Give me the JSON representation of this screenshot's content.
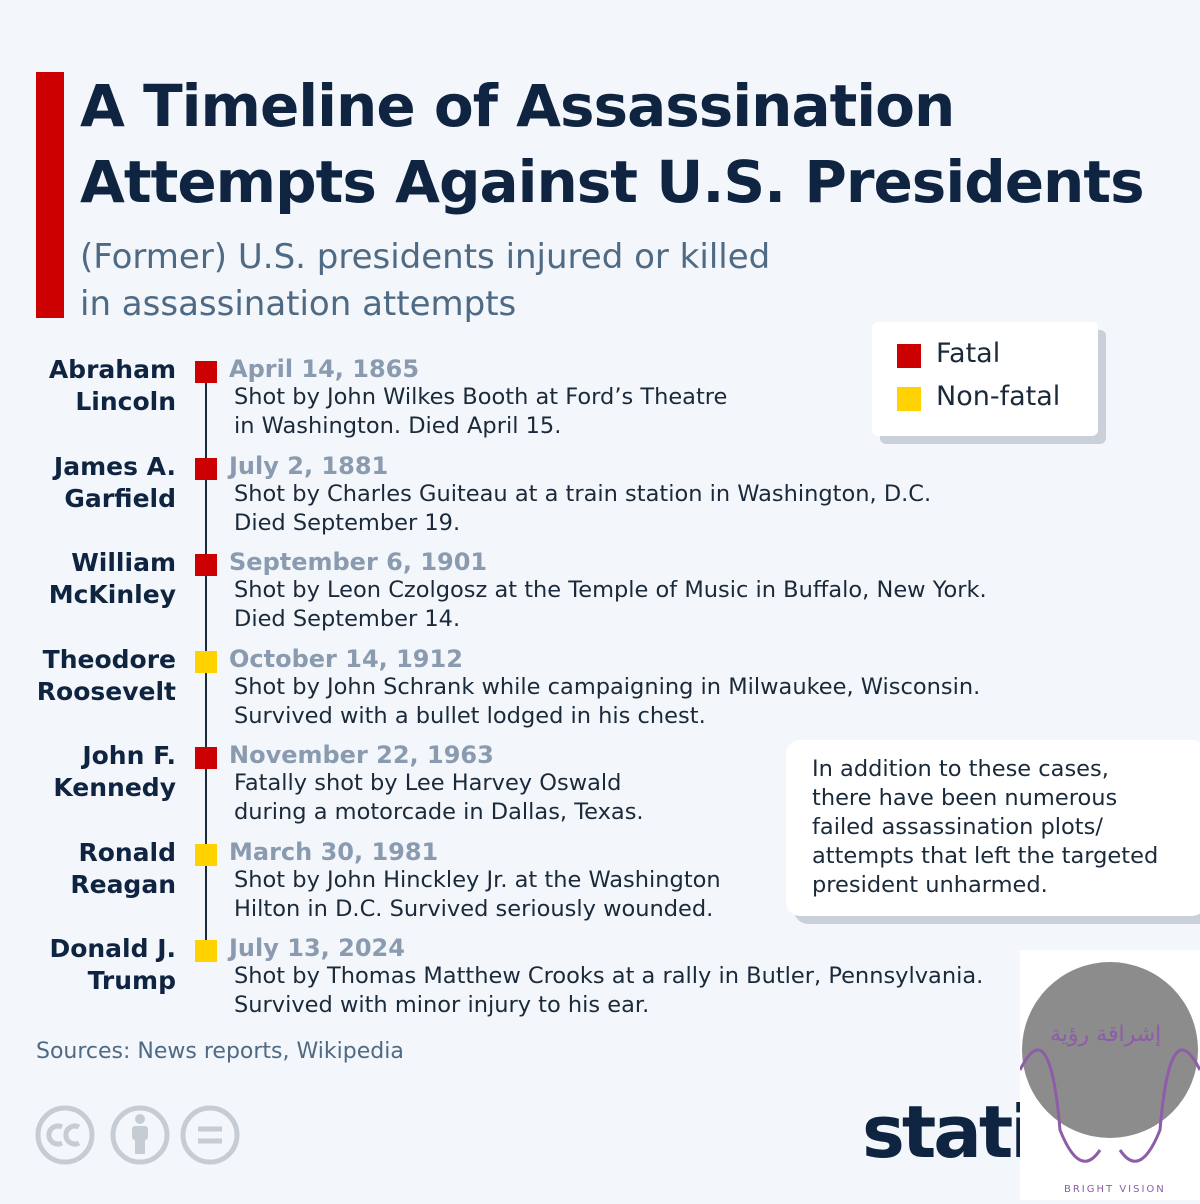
{
  "header": {
    "title_lines": [
      "A Timeline of Assassination",
      "Attempts Against U.S. Presidents"
    ],
    "subtitle_lines": [
      "(Former) U.S. presidents injured or killed",
      "in assassination attempts"
    ]
  },
  "legend": [
    {
      "label": "Fatal",
      "color": "#cc0000"
    },
    {
      "label": "Non-fatal",
      "color": "#ffd200"
    }
  ],
  "events": [
    {
      "name_lines": [
        "Abraham",
        "Lincoln"
      ],
      "date": "April 14, 1865",
      "color": "#cc0000",
      "description_lines": [
        "Shot by John Wilkes Booth at Ford’s Theatre",
        "in Washington. Died April 15."
      ]
    },
    {
      "name_lines": [
        "James A.",
        "Garfield"
      ],
      "date": "July 2, 1881",
      "color": "#cc0000",
      "description_lines": [
        "Shot by Charles Guiteau at a train station in Washington, D.C.",
        "Died September 19."
      ]
    },
    {
      "name_lines": [
        "William",
        "McKinley"
      ],
      "date": "September 6, 1901",
      "color": "#cc0000",
      "description_lines": [
        "Shot by Leon Czolgosz at the Temple of Music in Buffalo, New York.",
        "Died September 14."
      ]
    },
    {
      "name_lines": [
        "Theodore",
        "Roosevelt"
      ],
      "date": "October 14, 1912",
      "color": "#ffd200",
      "description_lines": [
        "Shot by John Schrank while campaigning in Milwaukee, Wisconsin.",
        "Survived with a bullet lodged in his chest."
      ]
    },
    {
      "name_lines": [
        "John F.",
        "Kennedy"
      ],
      "date": "November 22, 1963",
      "color": "#cc0000",
      "description_lines": [
        "Fatally shot by Lee Harvey Oswald",
        "during a motorcade in Dallas, Texas."
      ]
    },
    {
      "name_lines": [
        "Ronald",
        "Reagan"
      ],
      "date": "March 30, 1981",
      "color": "#ffd200",
      "description_lines": [
        "Shot by John Hinckley Jr. at the Washington",
        "Hilton in D.C. Survived seriously wounded."
      ]
    },
    {
      "name_lines": [
        "Donald J.",
        "Trump"
      ],
      "date": "July 13, 2024",
      "color": "#ffd200",
      "description_lines": [
        "Shot by Thomas Matthew Crooks at a rally in Butler, Pennsylvania.",
        "Survived with minor injury to his ear."
      ]
    }
  ],
  "note_lines": [
    "In addition to these cases,",
    "there have been numerous",
    "failed assassination plots/",
    "attempts that left the targeted",
    "president unharmed."
  ],
  "source": "Sources: News reports, Wikipedia",
  "logo": "statista",
  "watermark": {
    "arabic": "إشراقة رؤية",
    "english": "BRIGHT VISION"
  }
}
